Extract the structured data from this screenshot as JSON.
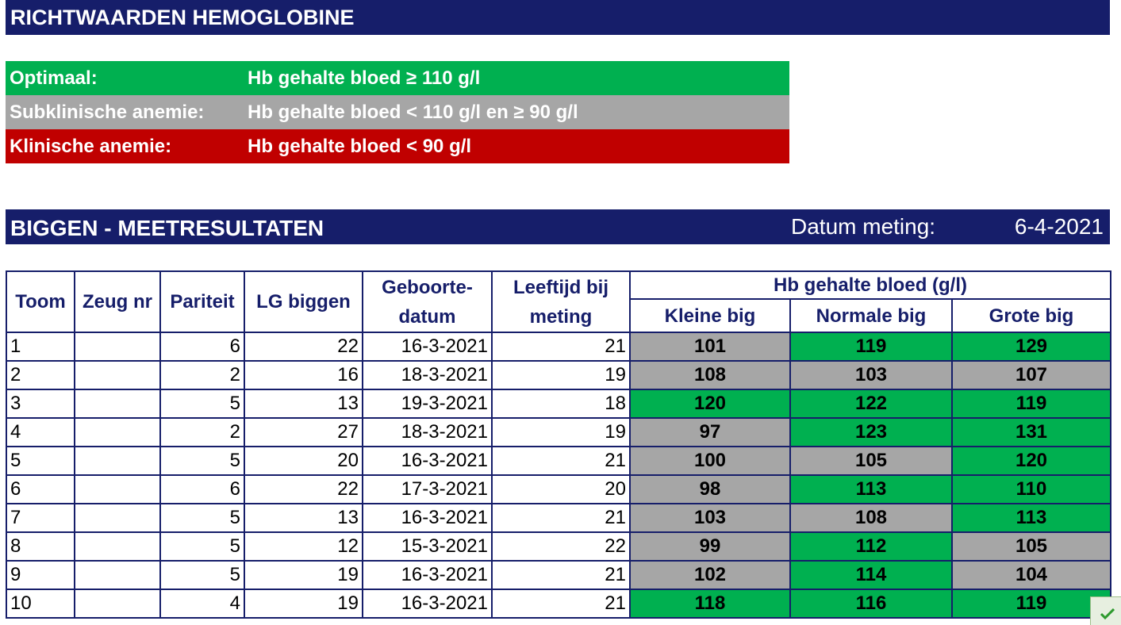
{
  "header": {
    "title": "RICHTWAARDEN HEMOGLOBINE"
  },
  "legend": [
    {
      "label": "Optimaal:",
      "value": "Hb gehalte bloed ≥ 110 g/l",
      "color": "#00b050"
    },
    {
      "label": "Subklinische anemie:",
      "value": "Hb gehalte bloed < 110 g/l en ≥ 90 g/l",
      "color": "#a6a6a6"
    },
    {
      "label": "Klinische anemie:",
      "value": "Hb gehalte bloed < 90 g/l",
      "color": "#c00000"
    }
  ],
  "results": {
    "title": "BIGGEN - MEETRESULTATEN",
    "date_label": "Datum meting:",
    "date_value": "6-4-2021"
  },
  "table": {
    "headers": {
      "toom": "Toom",
      "zeug_nr": "Zeug nr",
      "pariteit": "Pariteit",
      "lg_biggen": "LG biggen",
      "geboortedatum_line1": "Geboorte-",
      "geboortedatum_line2": "datum",
      "leeftijd_line1": "Leeftijd bij",
      "leeftijd_line2": "meting",
      "hb_group": "Hb gehalte bloed (g/l)",
      "kleine_big": "Kleine big",
      "normale_big": "Normale big",
      "grote_big": "Grote big"
    },
    "rows": [
      {
        "toom": "1",
        "zeug_nr": "",
        "pariteit": "6",
        "lg_biggen": "22",
        "geboortedatum": "16-3-2021",
        "leeftijd": "21",
        "kleine": "101",
        "normale": "119",
        "grote": "129"
      },
      {
        "toom": "2",
        "zeug_nr": "",
        "pariteit": "2",
        "lg_biggen": "16",
        "geboortedatum": "18-3-2021",
        "leeftijd": "19",
        "kleine": "108",
        "normale": "103",
        "grote": "107"
      },
      {
        "toom": "3",
        "zeug_nr": "",
        "pariteit": "5",
        "lg_biggen": "13",
        "geboortedatum": "19-3-2021",
        "leeftijd": "18",
        "kleine": "120",
        "normale": "122",
        "grote": "119"
      },
      {
        "toom": "4",
        "zeug_nr": "",
        "pariteit": "2",
        "lg_biggen": "27",
        "geboortedatum": "18-3-2021",
        "leeftijd": "19",
        "kleine": "97",
        "normale": "123",
        "grote": "131"
      },
      {
        "toom": "5",
        "zeug_nr": "",
        "pariteit": "5",
        "lg_biggen": "20",
        "geboortedatum": "16-3-2021",
        "leeftijd": "21",
        "kleine": "100",
        "normale": "105",
        "grote": "120"
      },
      {
        "toom": "6",
        "zeug_nr": "",
        "pariteit": "6",
        "lg_biggen": "22",
        "geboortedatum": "17-3-2021",
        "leeftijd": "20",
        "kleine": "98",
        "normale": "113",
        "grote": "110"
      },
      {
        "toom": "7",
        "zeug_nr": "",
        "pariteit": "5",
        "lg_biggen": "13",
        "geboortedatum": "16-3-2021",
        "leeftijd": "21",
        "kleine": "103",
        "normale": "108",
        "grote": "113"
      },
      {
        "toom": "8",
        "zeug_nr": "",
        "pariteit": "5",
        "lg_biggen": "12",
        "geboortedatum": "15-3-2021",
        "leeftijd": "22",
        "kleine": "99",
        "normale": "112",
        "grote": "105"
      },
      {
        "toom": "9",
        "zeug_nr": "",
        "pariteit": "5",
        "lg_biggen": "19",
        "geboortedatum": "16-3-2021",
        "leeftijd": "21",
        "kleine": "102",
        "normale": "114",
        "grote": "104"
      },
      {
        "toom": "10",
        "zeug_nr": "",
        "pariteit": "4",
        "lg_biggen": "19",
        "geboortedatum": "16-3-2021",
        "leeftijd": "21",
        "kleine": "118",
        "normale": "116",
        "grote": "119"
      }
    ]
  },
  "colors": {
    "banner": "#161e6a",
    "optimal": "#00b050",
    "subclinical": "#a6a6a6",
    "clinical": "#c00000"
  },
  "icons": {
    "status": "checkmark-icon"
  }
}
